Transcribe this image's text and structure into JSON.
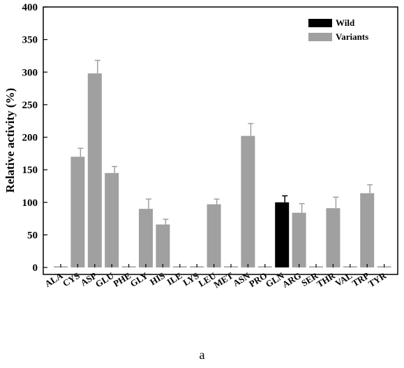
{
  "chart_data": {
    "type": "bar",
    "xlabel": "",
    "ylabel": "Relative activity (%)",
    "ylim": [
      0,
      400
    ],
    "yticks": [
      0,
      50,
      100,
      150,
      200,
      250,
      300,
      350,
      400
    ],
    "grid": false,
    "legend_position": "top-right",
    "categories": [
      "ALA",
      "CYS",
      "ASP",
      "GLU",
      "PHE",
      "GLY",
      "HIS",
      "ILE",
      "LYS",
      "LEU",
      "MET",
      "ASN",
      "PRO",
      "GLN",
      "ARG",
      "SER",
      "THR",
      "VAL",
      "TRP",
      "TYR"
    ],
    "values": [
      0,
      170,
      298,
      145,
      0,
      90,
      66,
      0,
      0,
      97,
      0,
      202,
      0,
      100,
      84,
      0,
      91,
      0,
      114,
      0
    ],
    "errors": [
      0,
      13,
      20,
      10,
      0,
      15,
      8,
      0,
      0,
      8,
      0,
      19,
      0,
      10,
      14,
      0,
      17,
      0,
      13,
      0
    ],
    "group": [
      "Variants",
      "Variants",
      "Variants",
      "Variants",
      "Variants",
      "Variants",
      "Variants",
      "Variants",
      "Variants",
      "Variants",
      "Variants",
      "Variants",
      "Variants",
      "Wild",
      "Variants",
      "Variants",
      "Variants",
      "Variants",
      "Variants",
      "Variants"
    ],
    "series": [
      {
        "name": "Wild",
        "color": "#000000"
      },
      {
        "name": "Variants",
        "color": "#a0a0a0"
      }
    ]
  },
  "caption": "a"
}
